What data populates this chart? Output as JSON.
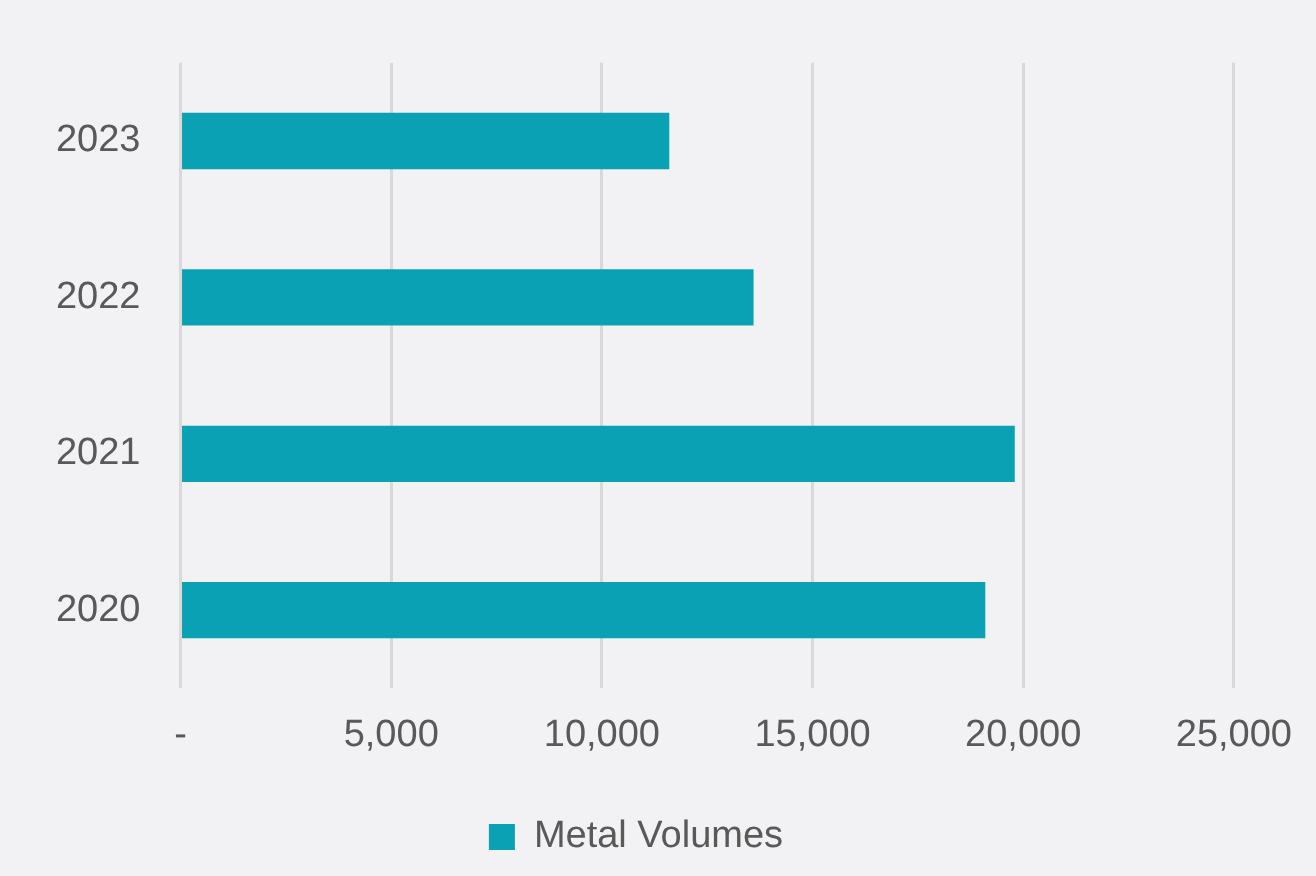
{
  "chart_data": {
    "type": "bar",
    "orientation": "horizontal",
    "categories": [
      "2023",
      "2022",
      "2021",
      "2020"
    ],
    "series": [
      {
        "name": "Metal Volumes",
        "color": "#0aa1b5",
        "values": [
          11600,
          13600,
          19800,
          19100
        ]
      }
    ],
    "xlim": [
      0,
      25000
    ],
    "xticks": [
      {
        "value": 0,
        "label": "-"
      },
      {
        "value": 5000,
        "label": "5,000"
      },
      {
        "value": 10000,
        "label": "10,000"
      },
      {
        "value": 15000,
        "label": "15,000"
      },
      {
        "value": 20000,
        "label": "20,000"
      },
      {
        "value": 25000,
        "label": "25,000"
      }
    ],
    "grid": "x",
    "legend": "bottom"
  }
}
